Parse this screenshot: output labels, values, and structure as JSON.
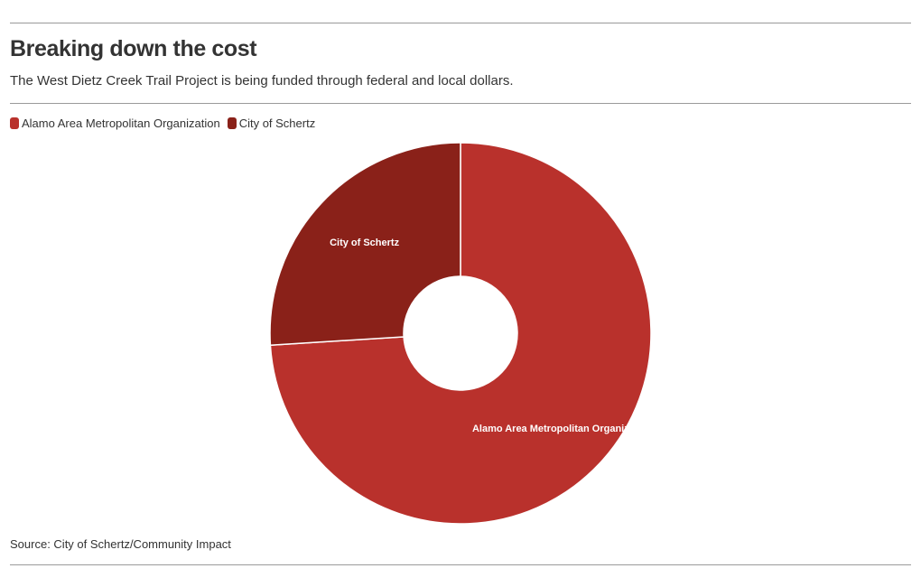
{
  "header": {
    "title": "Breaking down the cost",
    "subtitle": "The West Dietz Creek Trail Project is being funded through federal and local dollars."
  },
  "legend": {
    "items": [
      {
        "label": "Alamo Area Metropolitan Organization",
        "color": "#b9312c"
      },
      {
        "label": "City of Schertz",
        "color": "#8a2119"
      }
    ]
  },
  "chart_data": {
    "type": "pie",
    "donut": true,
    "legend_position": "top-left",
    "categories": [
      "Alamo Area Metropolitan Organization",
      "City of Schertz"
    ],
    "values": [
      74,
      26
    ],
    "colors": [
      "#b9312c",
      "#8a2119"
    ],
    "slice_labels": [
      "Alamo Area Metropolitan Organization",
      "City of Schertz"
    ]
  },
  "footer": {
    "source": "Source: City of Schertz/Community Impact"
  }
}
